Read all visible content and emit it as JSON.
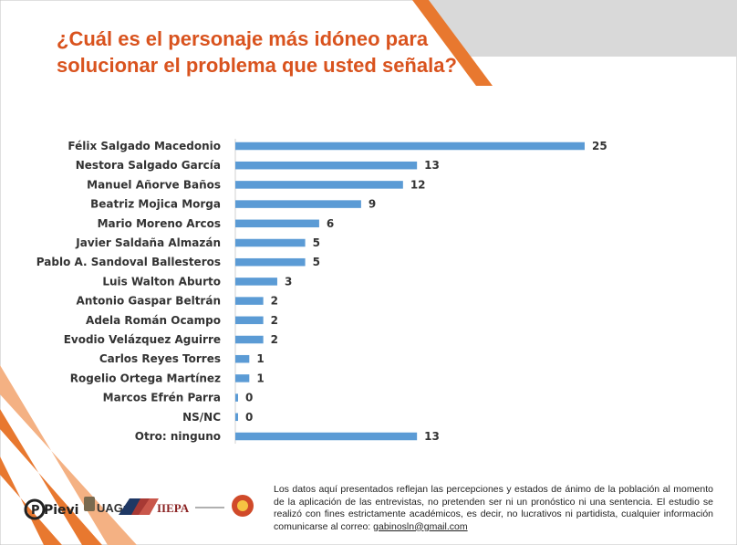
{
  "title": "¿Cuál es el personaje más idóneo para solucionar el problema que usted señala?",
  "chart_data": {
    "type": "bar",
    "orientation": "horizontal",
    "categories": [
      "Félix Salgado Macedonio",
      "Nestora Salgado García",
      "Manuel Añorve Baños",
      "Beatriz Mojica Morga",
      "Mario Moreno Arcos",
      "Javier Saldaña Almazán",
      "Pablo A. Sandoval Ballesteros",
      "Luis Walton Aburto",
      "Antonio Gaspar Beltrán",
      "Adela Román Ocampo",
      "Evodio Velázquez Aguirre",
      "Carlos Reyes Torres",
      "Rogelio Ortega Martínez",
      "Marcos Efrén Parra",
      "NS/NC",
      "Otro: ninguno"
    ],
    "values": [
      25,
      13,
      12,
      9,
      6,
      5,
      5,
      3,
      2,
      2,
      2,
      1,
      1,
      0,
      0,
      13
    ],
    "bar_color": "#5b9bd5",
    "grid": false
  },
  "footer": {
    "text": "Los datos aquí presentados reflejan las percepciones y estados de ánimo de la población al momento de la aplicación de las entrevistas, no pretenden ser ni un pronóstico ni una sentencia. El estudio se realizó con fines estrictamente académicos, es decir, no lucrativos ni partidista, cualquier información comunicarse al correo: ",
    "email": "gabinosln@gmail.com"
  },
  "logos": {
    "pievi": "Pievi",
    "uagro": "UAGro",
    "iiepa": "IIEPA"
  },
  "colors": {
    "accent_orange": "#e8782f",
    "title_color": "#d9531e",
    "gray_band": "#d9d9d9"
  }
}
